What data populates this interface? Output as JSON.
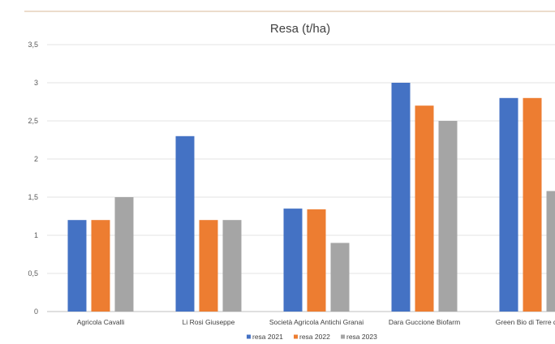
{
  "chart_data": {
    "type": "bar",
    "title": "Resa (t/ha)",
    "categories": [
      "Agricola Cavalli",
      "Li Rosi Giuseppe",
      "Società Agricola Antichi Granai",
      "Dara Guccione Biofarm",
      "Green Bio di Terre di Sa"
    ],
    "series": [
      {
        "name": "resa 2021",
        "color": "#4472c4",
        "values": [
          1.2,
          2.3,
          1.35,
          3.0,
          2.8
        ]
      },
      {
        "name": "resa 2022",
        "color": "#ed7d31",
        "values": [
          1.2,
          1.2,
          1.34,
          2.7,
          2.8
        ]
      },
      {
        "name": "resa 2023",
        "color": "#a5a5a5",
        "values": [
          1.5,
          1.2,
          0.9,
          2.5,
          1.58
        ]
      }
    ],
    "ylim": [
      0,
      3.5
    ],
    "yticks": [
      "0",
      "0,5",
      "1",
      "1,5",
      "2",
      "2,5",
      "3",
      "3,5"
    ],
    "grid": true,
    "legend_position": "bottom"
  }
}
